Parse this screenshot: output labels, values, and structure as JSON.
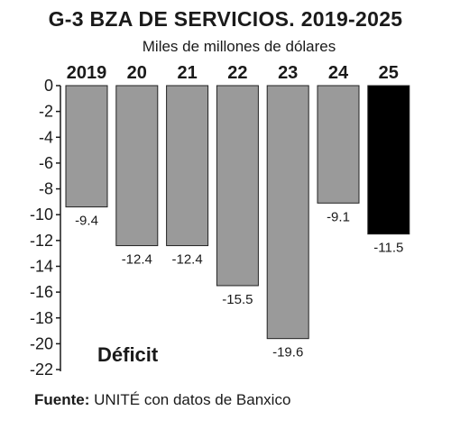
{
  "chart_data": {
    "type": "bar",
    "title": "G-3 BZA DE SERVICIOS. 2019-2025",
    "subtitle": "Miles de millones de dólares",
    "categories": [
      "2019",
      "20",
      "21",
      "22",
      "23",
      "24",
      "25"
    ],
    "values": [
      -9.4,
      -12.4,
      -12.4,
      -15.5,
      -19.6,
      -9.1,
      -11.5
    ],
    "value_labels": [
      "-9.4",
      "-12.4",
      "-12.4",
      "-15.5",
      "-19.6",
      "-9.1",
      "-11.5"
    ],
    "ylim": [
      -22,
      0
    ],
    "yticks": [
      0,
      -2,
      -4,
      -6,
      -8,
      -10,
      -12,
      -14,
      -16,
      -18,
      -20,
      -22
    ],
    "ytick_labels": [
      "0",
      "-2",
      "-4",
      "-6",
      "-8",
      "-10",
      "-12",
      "-14",
      "-16",
      "-18",
      "-20",
      "-22"
    ],
    "annotation": "Déficit",
    "xlabel": "",
    "ylabel": "",
    "grid": false,
    "colors": {
      "default": "#9a9a9a",
      "highlight": "#000000",
      "highlight_index": 6,
      "border": "#222222"
    }
  },
  "source": {
    "label": "Fuente:",
    "text": "UNITÉ con datos de Banxico"
  }
}
